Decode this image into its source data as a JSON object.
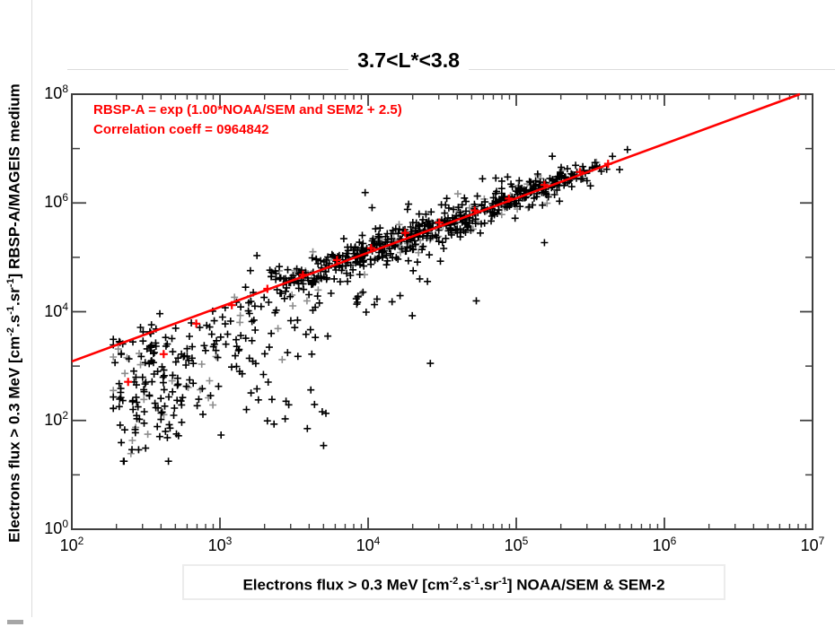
{
  "title": "3.7<L*<3.8",
  "annotation": {
    "line1": "RBSP-A = exp (1.00*NOAA/SEM and SEM2 + 2.5)",
    "line2": "Correlation coeff = 0964842",
    "color": "#ff0000"
  },
  "x_axis": {
    "scale": "log",
    "tick_base": "10",
    "tick_exponents": [
      2,
      3,
      4,
      5,
      6,
      7
    ],
    "label_segments": [
      {
        "t": "Electrons flux > 0.3 MeV [cm"
      },
      {
        "sup": "-2"
      },
      {
        "t": ".s"
      },
      {
        "sup": "-1"
      },
      {
        "t": ".sr"
      },
      {
        "sup": "-1"
      },
      {
        "t": "] NOAA/SEM & SEM-2"
      }
    ]
  },
  "y_axis": {
    "scale": "log",
    "tick_base": "10",
    "tick_exponents_labeled": [
      0,
      2,
      4,
      6,
      8
    ],
    "tick_exponents_unlabeled": [
      1,
      3,
      5,
      7
    ],
    "label_segments": [
      {
        "t": "Electrons flux > 0.3 MeV [cm"
      },
      {
        "sup": "-2"
      },
      {
        "t": ".s"
      },
      {
        "sup": "-1"
      },
      {
        "t": ".sr"
      },
      {
        "sup": "-1"
      },
      {
        "t": "] RBSP-A/MAGEIS medium"
      }
    ]
  },
  "chart_data": {
    "type": "scatter",
    "title": "3.7<L*<3.8",
    "xlabel": "Electrons flux > 0.3 MeV [cm-2.s-1.sr-1] NOAA/SEM & SEM-2",
    "ylabel": "Electrons flux > 0.3 MeV [cm-2.s-1.sr-1] RBSP-A/MAGEIS medium",
    "x_scale": "log",
    "y_scale": "log",
    "xlim_log10": [
      2,
      7
    ],
    "ylim_log10": [
      0,
      8
    ],
    "marker": "plus",
    "point_color": "#000000",
    "red_point_color": "#ff0000",
    "fit_line": {
      "slope": 1.0,
      "log10_intercept": 1.0857,
      "equation": "RBSP-A = exp (1.00*NOAA/SEM and SEM2 + 2.5)",
      "correlation_coeff": "0964842",
      "color": "#ff0000",
      "width": 2.6
    },
    "seed": 11,
    "clamp": {
      "lx": [
        2.28,
        5.76
      ],
      "ly": [
        1.25,
        7.05
      ]
    },
    "clusters": [
      {
        "n": 130,
        "lx": [
          3.75,
          0.27
        ],
        "dy": [
          -0.02,
          0.16
        ]
      },
      {
        "n": 150,
        "lx": [
          4.15,
          0.3
        ],
        "dy": [
          0.0,
          0.17
        ]
      },
      {
        "n": 120,
        "lx": [
          4.62,
          0.28
        ],
        "dy": [
          0.02,
          0.15
        ]
      },
      {
        "n": 105,
        "lx": [
          5.03,
          0.22
        ],
        "dy": [
          0.04,
          0.13
        ]
      },
      {
        "n": 55,
        "lx": [
          5.33,
          0.16
        ],
        "dy": [
          0.05,
          0.11
        ]
      },
      {
        "n": 70,
        "lx": [
          4.3,
          0.6
        ],
        "dy": [
          0.0,
          0.33
        ]
      },
      {
        "n": 105,
        "lx": [
          2.56,
          0.17
        ],
        "ly": [
          2.35,
          0.52
        ]
      },
      {
        "n": 85,
        "lx": [
          2.95,
          0.3
        ],
        "dy": [
          -0.55,
          0.42
        ]
      },
      {
        "n": 30,
        "lx": [
          2.5,
          0.14
        ],
        "dy": [
          -0.15,
          0.22
        ]
      },
      {
        "n": 30,
        "lx": [
          3.7,
          0.35
        ],
        "dy": [
          -0.75,
          0.3
        ]
      },
      {
        "n": 20,
        "lx": [
          3.3,
          0.25
        ],
        "ly": [
          2.4,
          0.4
        ]
      }
    ],
    "outliers_log10": [
      [
        3.98,
        6.19
      ],
      [
        4.73,
        4.2
      ],
      [
        5.19,
        5.27
      ],
      [
        4.42,
        3.05
      ],
      [
        3.42,
        3.12
      ],
      [
        3.62,
        3.22
      ],
      [
        2.32,
        3.45
      ],
      [
        5.75,
        6.98
      ],
      [
        3.59,
        1.85
      ],
      [
        3.44,
        2.03
      ]
    ],
    "red_points_log10": [
      [
        2.38,
        2.71
      ],
      [
        2.62,
        3.22
      ],
      [
        2.84,
        3.78
      ],
      [
        3.08,
        4.12
      ],
      [
        3.32,
        4.42
      ],
      [
        3.56,
        4.68
      ],
      [
        3.79,
        4.95
      ],
      [
        4.02,
        5.17
      ],
      [
        4.25,
        5.45
      ],
      [
        4.48,
        5.64
      ],
      [
        4.72,
        5.86
      ],
      [
        4.95,
        6.08
      ],
      [
        5.19,
        6.33
      ],
      [
        5.43,
        6.57
      ],
      [
        5.62,
        6.72
      ]
    ]
  },
  "decor": {
    "frame_color": "#3f3f3f",
    "grid_color": "#dcdcdc",
    "corner_mark_color": "#a6a6a6",
    "background": "#ffffff"
  }
}
